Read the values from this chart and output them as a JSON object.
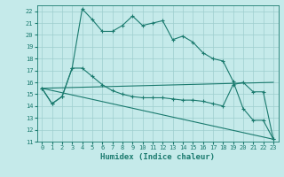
{
  "xlabel": "Humidex (Indice chaleur)",
  "background_color": "#c5eaea",
  "grid_color": "#9ecece",
  "line_color": "#1a7a6e",
  "xlim": [
    -0.5,
    23.5
  ],
  "ylim": [
    11,
    22.5
  ],
  "yticks": [
    11,
    12,
    13,
    14,
    15,
    16,
    17,
    18,
    19,
    20,
    21,
    22
  ],
  "xticks": [
    0,
    1,
    2,
    3,
    4,
    5,
    6,
    7,
    8,
    9,
    10,
    11,
    12,
    13,
    14,
    15,
    16,
    17,
    18,
    19,
    20,
    21,
    22,
    23
  ],
  "line1_x": [
    0,
    1,
    2,
    3,
    4,
    5,
    6,
    7,
    8,
    9,
    10,
    11,
    12,
    13,
    14,
    15,
    16,
    17,
    18,
    19,
    20,
    21,
    22,
    23
  ],
  "line1_y": [
    15.5,
    14.2,
    14.8,
    17.2,
    22.2,
    21.3,
    20.3,
    20.3,
    20.8,
    21.6,
    20.8,
    21.0,
    21.2,
    19.6,
    19.9,
    19.4,
    18.5,
    18.0,
    17.8,
    16.1,
    13.8,
    12.8,
    12.8,
    11.2
  ],
  "line2_x": [
    0,
    1,
    2,
    3,
    4,
    5,
    6,
    7,
    8,
    9,
    10,
    11,
    12,
    13,
    14,
    15,
    16,
    17,
    18,
    19,
    20,
    21,
    22,
    23
  ],
  "line2_y": [
    15.5,
    14.2,
    14.8,
    17.2,
    17.2,
    16.5,
    15.8,
    15.3,
    15.0,
    14.8,
    14.7,
    14.7,
    14.7,
    14.6,
    14.5,
    14.5,
    14.4,
    14.2,
    14.0,
    15.8,
    16.0,
    15.2,
    15.2,
    11.2
  ],
  "line3_x": [
    0,
    23
  ],
  "line3_y": [
    15.5,
    11.2
  ],
  "line4_x": [
    0,
    23
  ],
  "line4_y": [
    15.5,
    16.0
  ],
  "xlabel_fontsize": 6.5,
  "tick_fontsize": 5.0
}
